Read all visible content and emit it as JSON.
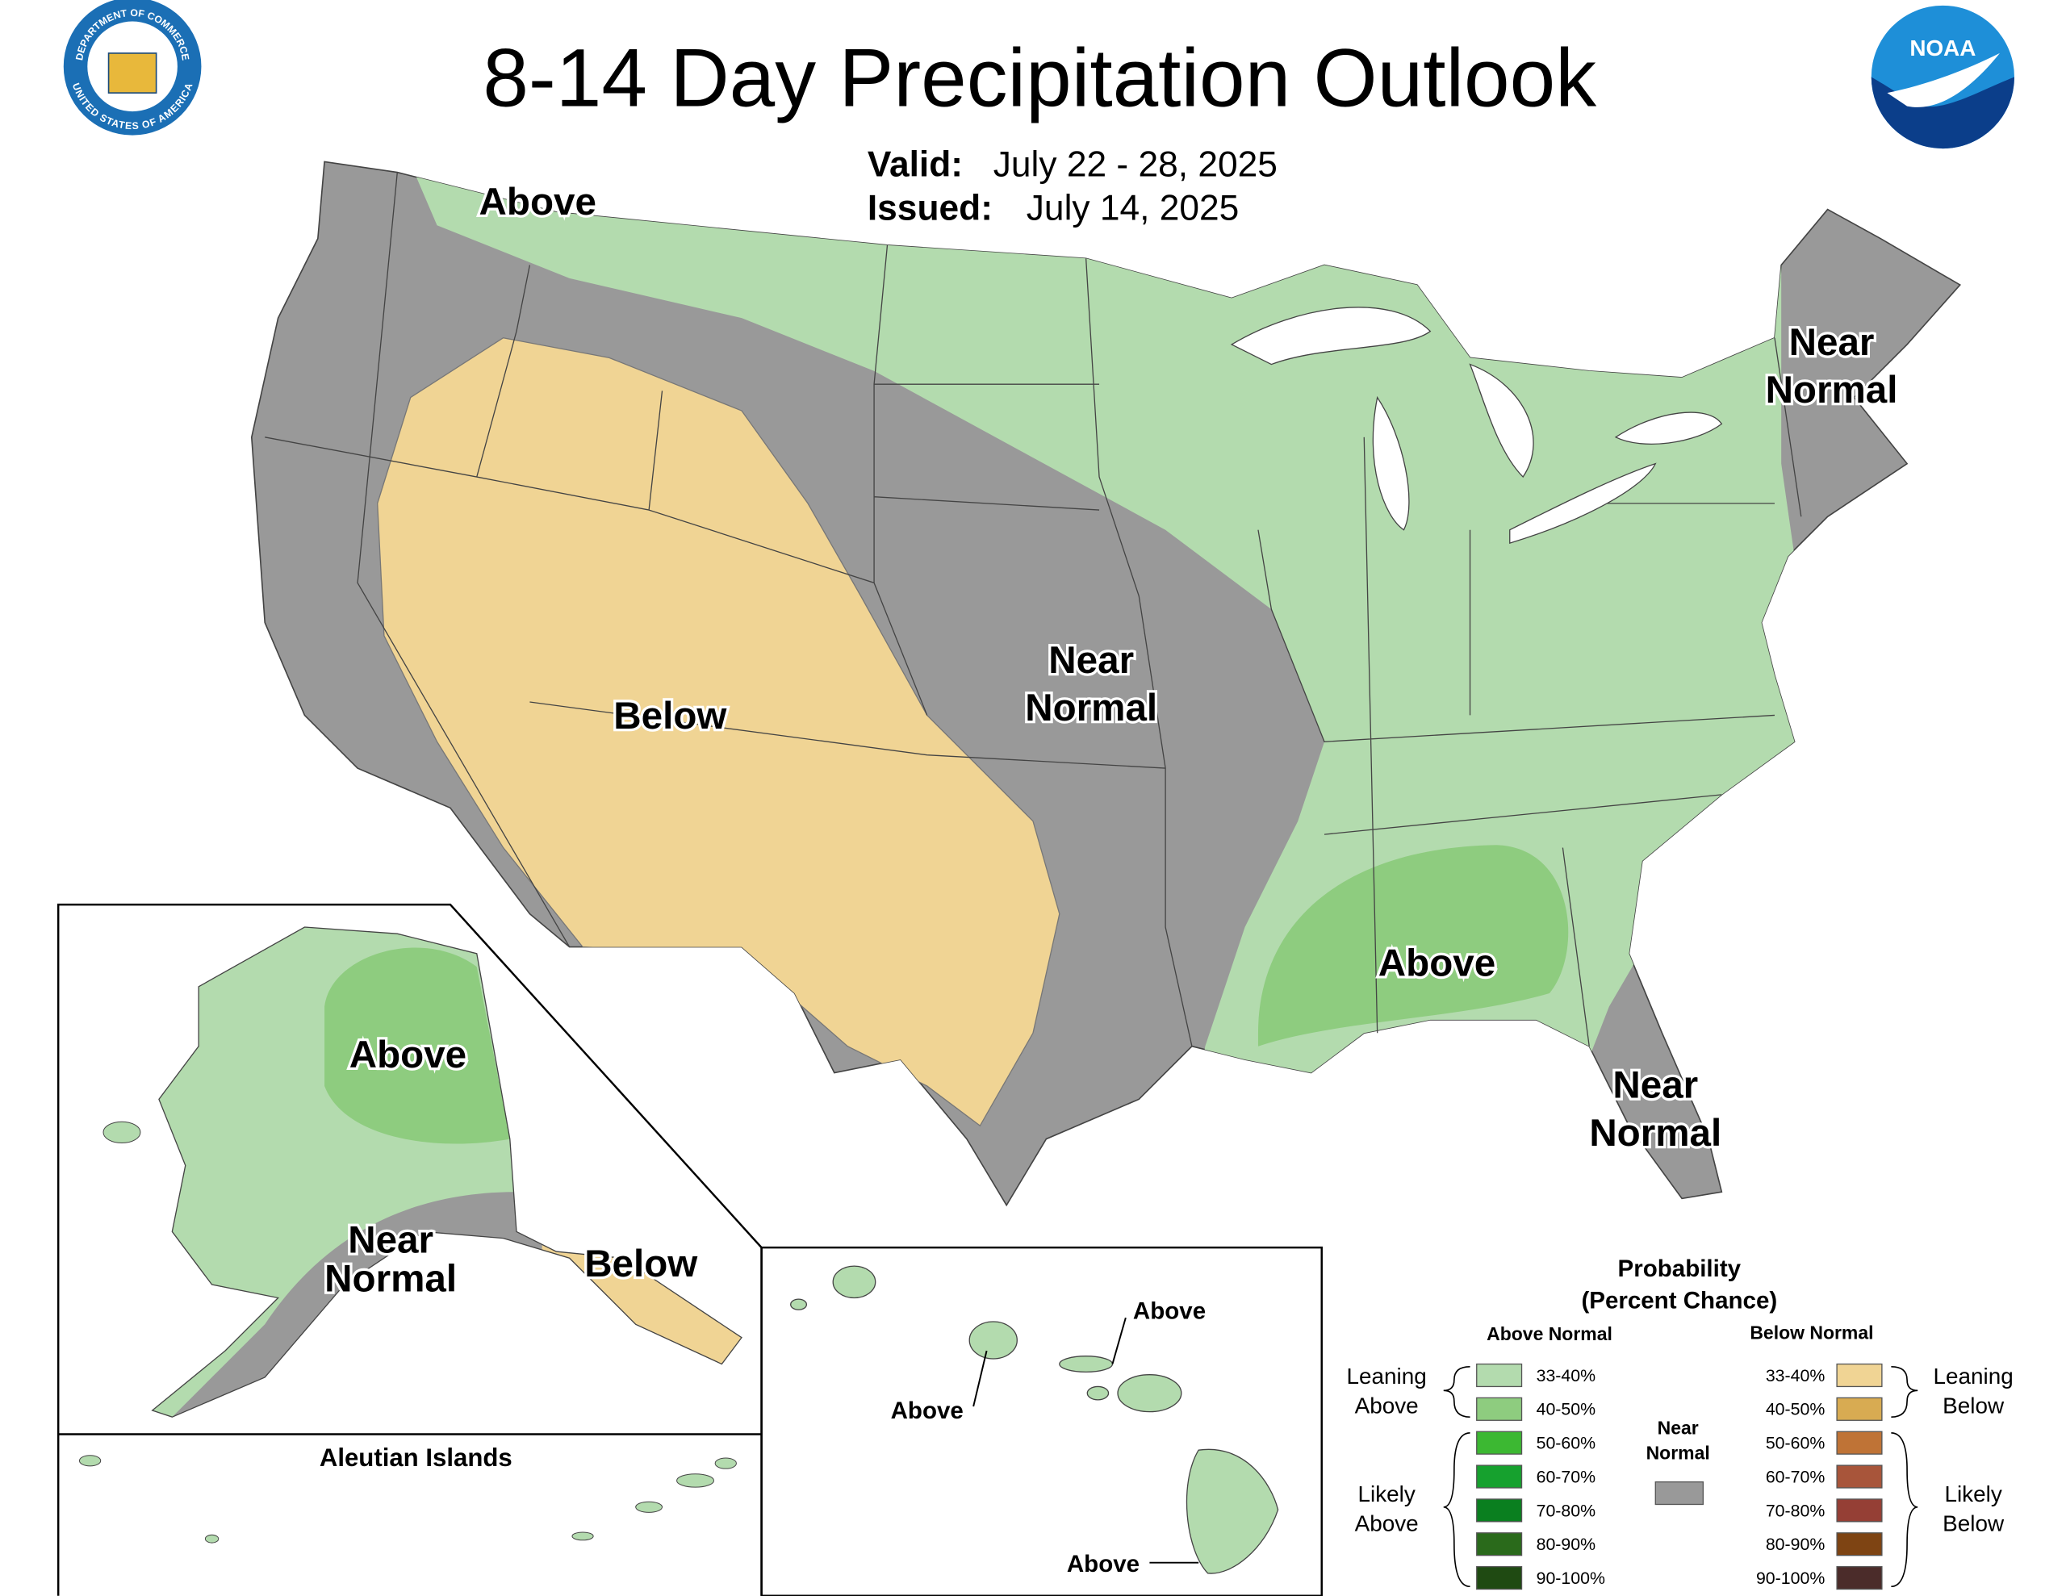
{
  "header": {
    "title": "8-14 Day Precipitation Outlook",
    "valid_label": "Valid:",
    "valid": "July 22 - 28, 2025",
    "issued_label": "Issued:",
    "issued": "July 14, 2025"
  },
  "logos": {
    "commerce": [
      "DEPARTMENT OF COMMERCE",
      "UNITED STATES OF AMERICA"
    ],
    "noaa": "NOAA"
  },
  "map_labels": [
    {
      "lines": [
        "Above"
      ]
    },
    {
      "lines": [
        "Below"
      ]
    },
    {
      "lines": [
        "Near",
        "Normal"
      ]
    },
    {
      "lines": [
        "Near",
        "Normal"
      ]
    },
    {
      "lines": [
        "Near",
        "Normal"
      ]
    },
    {
      "lines": [
        "Above"
      ]
    }
  ],
  "alaska_labels": [
    {
      "lines": [
        "Above"
      ]
    },
    {
      "lines": [
        "Near",
        "Normal"
      ]
    },
    {
      "lines": [
        "Below"
      ]
    }
  ],
  "aleutian_title": "Aleutian Islands",
  "hawaii_labels": [
    {
      "lines": [
        "Above"
      ]
    },
    {
      "lines": [
        "Above"
      ]
    },
    {
      "lines": [
        "Above"
      ]
    }
  ],
  "legend": {
    "title": "Probability",
    "subtitle": "(Percent Chance)",
    "above_header": "Above Normal",
    "below_header": "Below Normal",
    "near_label": [
      "Near",
      "Normal"
    ],
    "near_color": "#999999",
    "groups": [
      {
        "lines": [
          "Leaning",
          "Above"
        ]
      },
      {
        "lines": [
          "Likely",
          "Above"
        ]
      },
      {
        "lines": [
          "Leaning",
          "Below"
        ]
      },
      {
        "lines": [
          "Likely",
          "Below"
        ]
      }
    ],
    "above_items": [
      {
        "range": "33-40%",
        "color": "#b3dbae"
      },
      {
        "range": "40-50%",
        "color": "#8ecc7f"
      },
      {
        "range": "50-60%",
        "color": "#3cb832"
      },
      {
        "range": "60-70%",
        "color": "#16a12e"
      },
      {
        "range": "70-80%",
        "color": "#0a7f1f"
      },
      {
        "range": "80-90%",
        "color": "#2a6a1b"
      },
      {
        "range": "90-100%",
        "color": "#1f4a12"
      }
    ],
    "below_items": [
      {
        "range": "33-40%",
        "color": "#f0d494"
      },
      {
        "range": "40-50%",
        "color": "#d8ab52"
      },
      {
        "range": "50-60%",
        "color": "#bf7336"
      },
      {
        "range": "60-70%",
        "color": "#a8553a"
      },
      {
        "range": "70-80%",
        "color": "#953f35"
      },
      {
        "range": "80-90%",
        "color": "#7e4413"
      },
      {
        "range": "90-100%",
        "color": "#4b2c2a"
      }
    ]
  }
}
